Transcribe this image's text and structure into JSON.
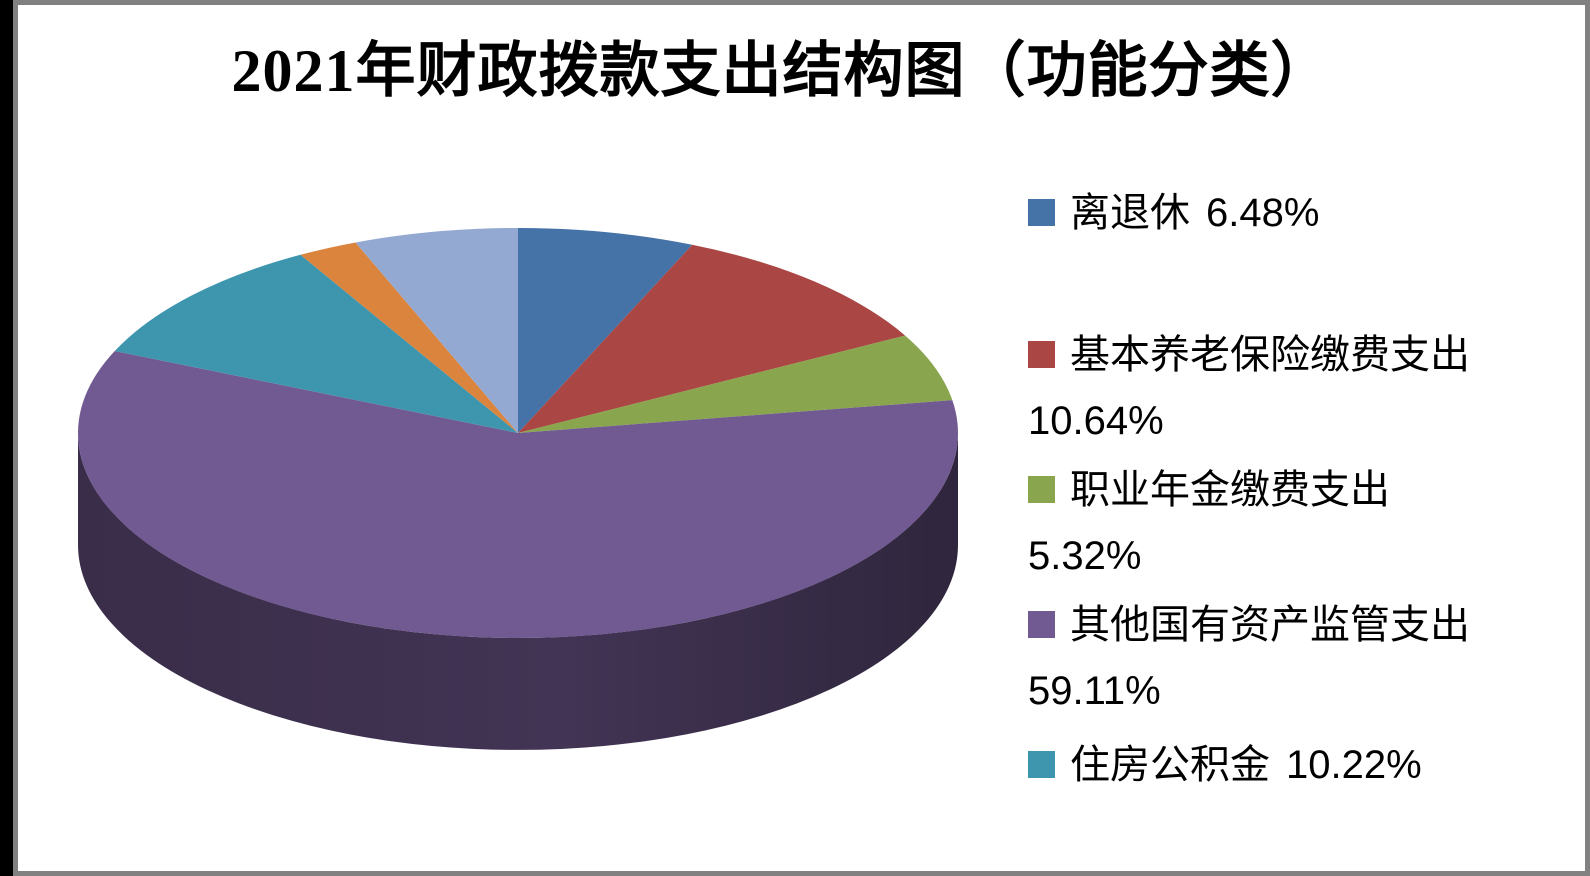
{
  "frame": {
    "background": "#ffffff",
    "border_color": "#818181",
    "left_band_color": "#000000"
  },
  "chart_data": {
    "type": "pie",
    "three_d": true,
    "title": "2021年财政拨款支出结构图（功能分类）",
    "legend_position": "right",
    "start_angle_deg": 0,
    "direction": "clockwise",
    "percent_total": 100,
    "slices": [
      {
        "label": "离退休",
        "value_pct": 6.48,
        "pct_label": "6.48%",
        "color": "#4572A7",
        "in_legend": true,
        "legend_two_line": false
      },
      {
        "label": "基本养老保险缴费支出",
        "value_pct": 10.64,
        "pct_label": "10.64%",
        "color": "#AA4643",
        "in_legend": true,
        "legend_two_line": true
      },
      {
        "label": "职业年金缴费支出",
        "value_pct": 5.32,
        "pct_label": "5.32%",
        "color": "#89A54E",
        "in_legend": true,
        "legend_two_line": true
      },
      {
        "label": "其他国有资产监管支出",
        "value_pct": 59.11,
        "pct_label": "59.11%",
        "color": "#715A91",
        "in_legend": true,
        "legend_two_line": true
      },
      {
        "label": "住房公积金",
        "value_pct": 10.22,
        "pct_label": "10.22%",
        "color": "#3D96AE",
        "in_legend": true,
        "legend_two_line": false
      },
      {
        "label": "",
        "value_pct": 2.21,
        "color": "#DB843D",
        "in_legend": false
      },
      {
        "label": "",
        "value_pct": 6.02,
        "color": "#93A9D2",
        "in_legend": false
      }
    ]
  }
}
